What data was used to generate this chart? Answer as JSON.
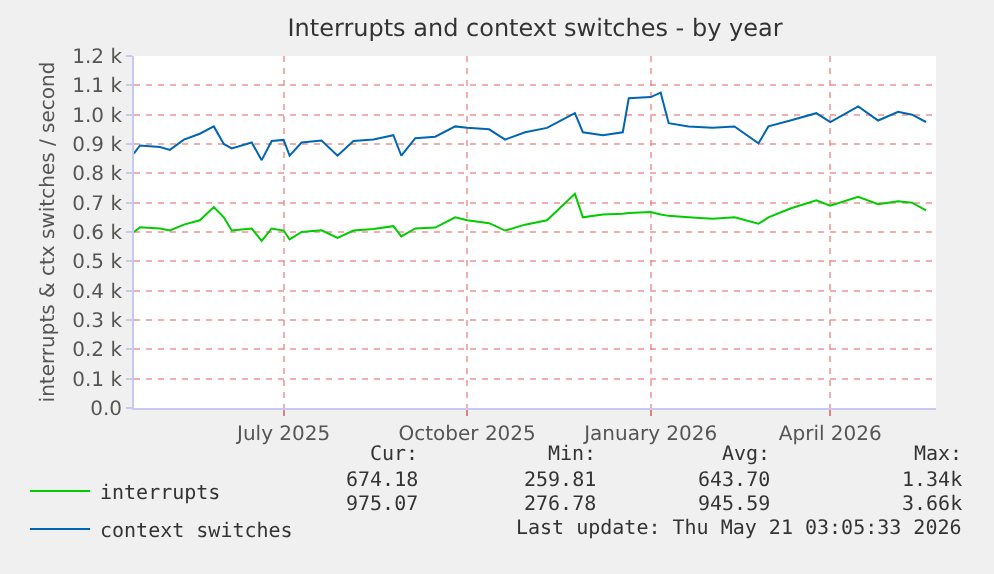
{
  "chart_data": {
    "type": "line",
    "title": "Interrupts and context switches - by year",
    "ylabel": "interrupts & ctx switches / second",
    "x": [
      "2025-04-17",
      "2025-04-20",
      "2025-04-30",
      "2025-05-05",
      "2025-05-12",
      "2025-05-20",
      "2025-05-27",
      "2025-06-01",
      "2025-06-05",
      "2025-06-15",
      "2025-06-20",
      "2025-06-25",
      "2025-07-01",
      "2025-07-04",
      "2025-07-10",
      "2025-07-20",
      "2025-07-28",
      "2025-08-05",
      "2025-08-15",
      "2025-08-25",
      "2025-08-29",
      "2025-09-05",
      "2025-09-15",
      "2025-09-25",
      "2025-10-01",
      "2025-10-12",
      "2025-10-20",
      "2025-10-30",
      "2025-11-10",
      "2025-11-24",
      "2025-11-28",
      "2025-12-08",
      "2025-12-18",
      "2025-12-21",
      "2026-01-01",
      "2026-01-06",
      "2026-01-10",
      "2026-01-20",
      "2026-02-01",
      "2026-02-12",
      "2026-02-24",
      "2026-03-01",
      "2026-03-12",
      "2026-03-25",
      "2026-04-01",
      "2026-04-15",
      "2026-04-25",
      "2026-05-05",
      "2026-05-12",
      "2026-05-19"
    ],
    "series": [
      {
        "name": "interrupts",
        "color": "#00cc00",
        "values": [
          600,
          616,
          612,
          605,
          625,
          640,
          685,
          650,
          605,
          612,
          570,
          612,
          605,
          575,
          600,
          606,
          580,
          605,
          610,
          620,
          585,
          612,
          615,
          650,
          640,
          630,
          605,
          625,
          640,
          730,
          650,
          660,
          662,
          665,
          668,
          660,
          655,
          650,
          645,
          650,
          628,
          650,
          680,
          708,
          690,
          720,
          695,
          705,
          700,
          674
        ]
      },
      {
        "name": "context switches",
        "color": "#0066b3",
        "values": [
          868,
          895,
          890,
          880,
          915,
          935,
          960,
          900,
          885,
          905,
          845,
          910,
          914,
          860,
          905,
          912,
          860,
          910,
          915,
          930,
          860,
          920,
          925,
          960,
          955,
          950,
          915,
          940,
          955,
          1005,
          940,
          930,
          940,
          1056,
          1060,
          1075,
          971,
          960,
          955,
          960,
          902,
          960,
          980,
          1005,
          975,
          1028,
          980,
          1010,
          1000,
          975
        ]
      }
    ],
    "xlim": [
      "2025-04-17",
      "2026-05-24"
    ],
    "xticks": [
      {
        "value": "2025-07-01",
        "label": "July 2025"
      },
      {
        "value": "2025-10-01",
        "label": "October 2025"
      },
      {
        "value": "2026-01-01",
        "label": "January 2026"
      },
      {
        "value": "2026-04-01",
        "label": "April 2026"
      }
    ],
    "ylim": [
      0,
      1200
    ],
    "yticks": [
      {
        "value": 0,
        "label": "0.0"
      },
      {
        "value": 100,
        "label": "0.1 k"
      },
      {
        "value": 200,
        "label": "0.2 k"
      },
      {
        "value": 300,
        "label": "0.3 k"
      },
      {
        "value": 400,
        "label": "0.4 k"
      },
      {
        "value": 500,
        "label": "0.5 k"
      },
      {
        "value": 600,
        "label": "0.6 k"
      },
      {
        "value": 700,
        "label": "0.7 k"
      },
      {
        "value": 800,
        "label": "0.8 k"
      },
      {
        "value": 900,
        "label": "0.9 k"
      },
      {
        "value": 1000,
        "label": "1.0 k"
      },
      {
        "value": 1100,
        "label": "1.1 k"
      },
      {
        "value": 1200,
        "label": "1.2 k"
      }
    ],
    "grid": true,
    "legend": "bottom left",
    "marker": "none",
    "line_style": "solid",
    "annotations": [
      "Cur:",
      "Min:",
      "Avg:",
      "Max:",
      "674.18",
      "259.81",
      "643.70",
      "1.34k",
      "975.07",
      "276.78",
      "945.59",
      "3.66k",
      "Last update: Thu May 21 03:05:33 2026"
    ]
  }
}
